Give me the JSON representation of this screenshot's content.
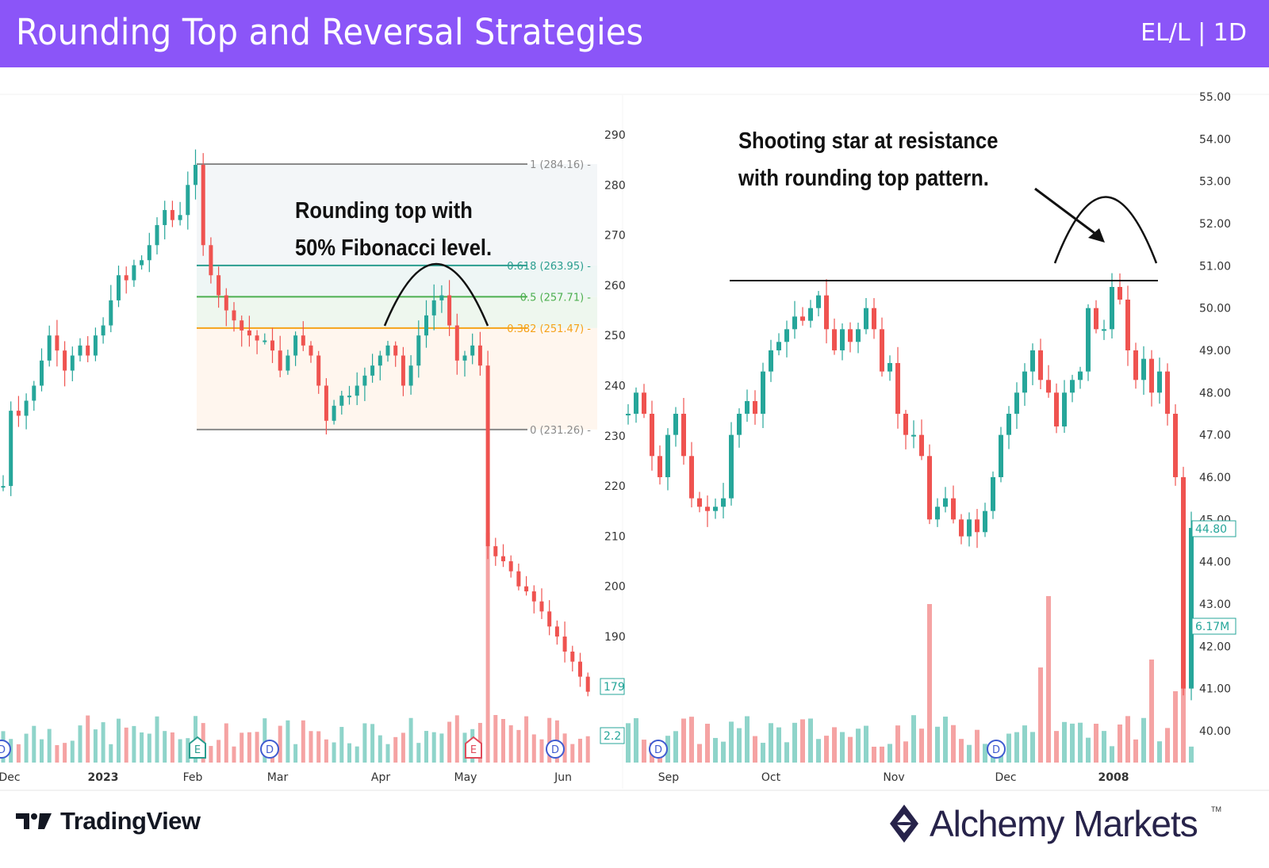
{
  "header": {
    "title": "Rounding Top and Reversal Strategies",
    "ticker": "EL/L | 1D"
  },
  "colors": {
    "header_bg": "#8b55f8",
    "up": "#26a69a",
    "down": "#ef5350",
    "up_volume": "#8fd4ca",
    "down_volume": "#f5a3a3"
  },
  "chart_data": [
    {
      "type": "candlestick",
      "title": "",
      "x_tick_labels": [
        "Dec",
        "2023",
        "Feb",
        "Mar",
        "Apr",
        "May",
        "Jun"
      ],
      "y_tick_labels": [
        "290",
        "280",
        "270",
        "260",
        "250",
        "240",
        "230",
        "220",
        "210",
        "200",
        "190"
      ],
      "ylim": [
        179,
        290
      ],
      "closes": [
        220,
        235,
        234,
        237,
        240,
        245,
        250,
        247,
        243,
        246,
        248,
        246,
        250,
        252,
        257,
        262,
        261,
        264,
        265,
        268,
        272,
        275,
        273,
        274,
        280,
        284,
        268,
        262,
        258,
        255,
        253,
        251,
        250,
        249,
        249,
        247,
        243,
        246,
        250,
        248,
        246,
        240,
        233,
        236,
        238,
        238,
        240,
        242,
        244,
        246,
        248,
        246,
        240,
        244,
        250,
        254,
        257,
        258,
        252,
        245,
        246,
        248,
        244,
        208,
        206,
        205,
        203,
        200,
        199,
        197,
        195,
        192,
        190,
        187,
        185,
        182,
        179
      ],
      "last_price_label": "179",
      "last_volume_label": "2.2",
      "fibonacci": [
        {
          "label": "1 (284.16)",
          "ratio": 1,
          "price": 284.16,
          "color": "#8a8a8a"
        },
        {
          "label": "0.618 (263.95)",
          "ratio": 0.618,
          "price": 263.95,
          "color": "#2a9d8f"
        },
        {
          "label": "0.5 (257.71)",
          "ratio": 0.5,
          "price": 257.71,
          "color": "#4caf50"
        },
        {
          "label": "0.382 (251.47)",
          "ratio": 0.382,
          "price": 251.47,
          "color": "#f5a31a"
        },
        {
          "label": "0 (231.26)",
          "ratio": 0,
          "price": 231.26,
          "color": "#8a8a8a"
        }
      ],
      "events": [
        {
          "label": "D",
          "month": "Dec"
        },
        {
          "label": "E",
          "month": "Feb"
        },
        {
          "label": "D",
          "month": "Mar"
        },
        {
          "label": "E",
          "month": "May"
        },
        {
          "label": "D",
          "month": "Jun"
        }
      ],
      "annotation": [
        "Rounding top with",
        "50% Fibonacci level."
      ]
    },
    {
      "type": "candlestick",
      "title": "",
      "x_tick_labels": [
        "Sep",
        "Oct",
        "Nov",
        "Dec",
        "2008"
      ],
      "y_tick_labels": [
        "55.00",
        "54.00",
        "53.00",
        "52.00",
        "51.00",
        "50.00",
        "49.00",
        "48.00",
        "47.00",
        "46.00",
        "45.00",
        "44.00",
        "43.00",
        "42.00",
        "41.00",
        "40.00"
      ],
      "ylim": [
        40,
        55
      ],
      "closes": [
        47.5,
        48,
        47.5,
        46.5,
        46,
        47,
        47.5,
        46.5,
        45.5,
        45.3,
        45.2,
        45.3,
        45.5,
        47,
        47.5,
        47.8,
        47.5,
        48.5,
        49,
        49.2,
        49.5,
        49.8,
        49.7,
        50,
        50.3,
        49.5,
        49,
        49.5,
        49.2,
        49.5,
        50,
        49.5,
        48.5,
        48.7,
        47.5,
        47,
        47,
        46.5,
        45,
        45.3,
        45.5,
        45,
        44.6,
        45,
        44.7,
        45.2,
        46,
        47,
        47.5,
        48,
        48.5,
        49,
        48.3,
        48,
        47.2,
        48,
        48.3,
        48.5,
        50,
        49.5,
        49.5,
        50.5,
        50.2,
        49,
        48.3,
        48.8,
        48,
        48.5,
        47.5,
        46,
        41,
        44.8
      ],
      "resistance": 50.65,
      "last_price_label": "44.80",
      "last_volume_label": "6.17M",
      "events": [
        {
          "label": "D",
          "month": "Sep"
        },
        {
          "label": "D",
          "month": "Dec"
        }
      ],
      "annotation": [
        "Shooting star at resistance",
        "with rounding top pattern."
      ]
    }
  ],
  "footer": {
    "tradingview": "TradingView",
    "alchemy": "Alchemy Markets",
    "tm": "TM"
  }
}
